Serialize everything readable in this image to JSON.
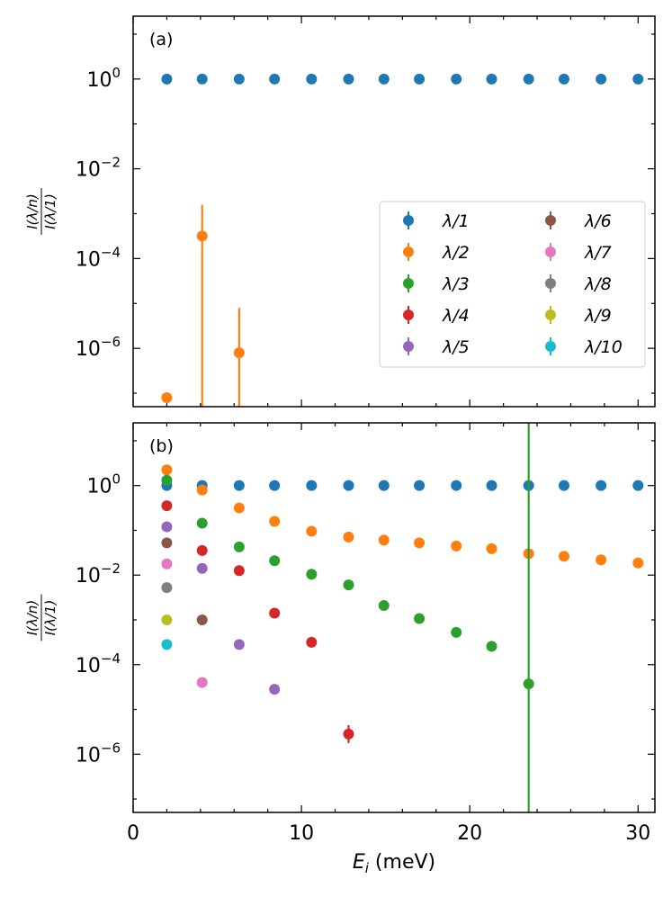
{
  "chart_data": [
    {
      "panel": "(a)",
      "type": "scatter",
      "xlim": [
        0,
        31
      ],
      "ylim_log10": [
        -7.3,
        1.4
      ],
      "ylabel_numerator": "I(λ/n)",
      "ylabel_denominator": "I(λ/1)",
      "yticks": [
        {
          "exp": "0",
          "v": 0
        },
        {
          "exp": "−2",
          "v": -2
        },
        {
          "exp": "−4",
          "v": -4
        },
        {
          "exp": "−6",
          "v": -6
        }
      ],
      "legend": {
        "location": "center-right",
        "entries": [
          {
            "label": "λ/1",
            "color": "#1f77b4"
          },
          {
            "label": "λ/2",
            "color": "#ff7f0e"
          },
          {
            "label": "λ/3",
            "color": "#2ca02c"
          },
          {
            "label": "λ/4",
            "color": "#d62728"
          },
          {
            "label": "λ/5",
            "color": "#9467bd"
          },
          {
            "label": "λ/6",
            "color": "#8c564b"
          },
          {
            "label": "λ/7",
            "color": "#e377c2"
          },
          {
            "label": "λ/8",
            "color": "#7f7f7f"
          },
          {
            "label": "λ/9",
            "color": "#bcbd22"
          },
          {
            "label": "λ/10",
            "color": "#17becf"
          }
        ]
      },
      "series": [
        {
          "name": "λ/1",
          "color": "#1f77b4",
          "x": [
            2.0,
            4.1,
            6.3,
            8.4,
            10.6,
            12.8,
            14.9,
            17.0,
            19.2,
            21.3,
            23.5,
            25.6,
            27.8,
            30.0
          ],
          "log10y": [
            0,
            0,
            0,
            0,
            0,
            0,
            0,
            0,
            0,
            0,
            0,
            0,
            0,
            0
          ]
        },
        {
          "name": "λ/2",
          "color": "#ff7f0e",
          "x": [
            2.0,
            4.1,
            6.3
          ],
          "log10y": [
            -7.1,
            -3.5,
            -6.1
          ],
          "err_log10": [
            null,
            [
              -7.5,
              -2.8
            ],
            [
              -7.5,
              -5.1
            ]
          ]
        }
      ]
    },
    {
      "panel": "(b)",
      "type": "scatter",
      "xlim": [
        0,
        31
      ],
      "ylim_log10": [
        -7.3,
        1.4
      ],
      "xlabel_var": "E",
      "xlabel_sub": "i",
      "xlabel_unit": " (meV)",
      "xticks": [
        {
          "label": "0",
          "v": 0
        },
        {
          "label": "10",
          "v": 10
        },
        {
          "label": "20",
          "v": 20
        },
        {
          "label": "30",
          "v": 30
        }
      ],
      "ylabel_numerator": "I(λ/n)",
      "ylabel_denominator": "I(λ/1)",
      "yticks": [
        {
          "exp": "0",
          "v": 0
        },
        {
          "exp": "−2",
          "v": -2
        },
        {
          "exp": "−4",
          "v": -4
        },
        {
          "exp": "−6",
          "v": -6
        }
      ],
      "series": [
        {
          "name": "λ/1",
          "color": "#1f77b4",
          "x": [
            2.0,
            4.1,
            6.3,
            8.4,
            10.6,
            12.8,
            14.9,
            17.0,
            19.2,
            21.3,
            23.5,
            25.6,
            27.8,
            30.0
          ],
          "log10y": [
            0,
            0,
            0,
            0,
            0,
            0,
            0,
            0,
            0,
            0,
            0,
            0,
            0,
            0
          ]
        },
        {
          "name": "λ/2",
          "color": "#ff7f0e",
          "x": [
            2.0,
            4.1,
            6.3,
            8.4,
            10.6,
            12.8,
            14.9,
            17.0,
            19.2,
            21.3,
            23.5,
            25.6,
            27.8,
            30.0
          ],
          "log10y": [
            0.35,
            -0.1,
            -0.5,
            -0.8,
            -1.02,
            -1.15,
            -1.22,
            -1.28,
            -1.35,
            -1.41,
            -1.52,
            -1.58,
            -1.66,
            -1.73
          ]
        },
        {
          "name": "λ/3",
          "color": "#2ca02c",
          "x": [
            2.0,
            4.1,
            6.3,
            8.4,
            10.6,
            12.8,
            14.9,
            17.0,
            19.2,
            21.3,
            23.5
          ],
          "log10y": [
            0.12,
            -0.84,
            -1.37,
            -1.68,
            -1.98,
            -2.22,
            -2.68,
            -2.97,
            -3.28,
            -3.59,
            -4.43
          ],
          "err_log10": [
            null,
            null,
            null,
            null,
            null,
            null,
            null,
            null,
            null,
            null,
            [
              -7.5,
              1.4
            ]
          ]
        },
        {
          "name": "λ/4",
          "color": "#d62728",
          "x": [
            2.0,
            4.1,
            6.3,
            8.4,
            10.6,
            12.8
          ],
          "log10y": [
            -0.45,
            -1.45,
            -1.9,
            -2.85,
            -3.5,
            -5.55
          ],
          "err_log10": [
            null,
            null,
            null,
            null,
            null,
            [
              -5.75,
              -5.35
            ]
          ]
        },
        {
          "name": "λ/5",
          "color": "#9467bd",
          "x": [
            2.0,
            4.1,
            6.3,
            8.4
          ],
          "log10y": [
            -0.92,
            -1.85,
            -3.55,
            -4.55
          ]
        },
        {
          "name": "λ/6",
          "color": "#8c564b",
          "x": [
            2.0,
            4.1
          ],
          "log10y": [
            -1.28,
            -3.0
          ]
        },
        {
          "name": "λ/7",
          "color": "#e377c2",
          "x": [
            2.0,
            4.1
          ],
          "log10y": [
            -1.75,
            -4.4
          ]
        },
        {
          "name": "λ/8",
          "color": "#7f7f7f",
          "x": [
            2.0
          ],
          "log10y": [
            -2.28
          ]
        },
        {
          "name": "λ/9",
          "color": "#bcbd22",
          "x": [
            2.0
          ],
          "log10y": [
            -3.0
          ]
        },
        {
          "name": "λ/10",
          "color": "#17becf",
          "x": [
            2.0
          ],
          "log10y": [
            -3.55
          ]
        }
      ]
    }
  ]
}
